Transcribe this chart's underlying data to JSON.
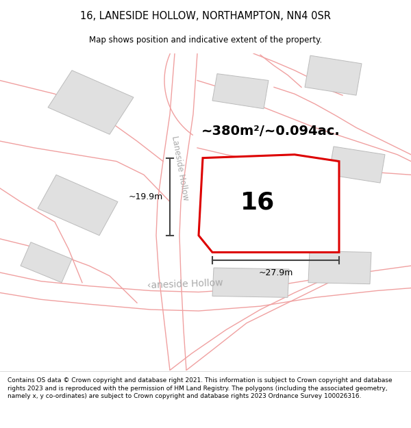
{
  "title": "16, LANESIDE HOLLOW, NORTHAMPTON, NN4 0SR",
  "subtitle": "Map shows position and indicative extent of the property.",
  "area_label": "~380m²/~0.094ac.",
  "plot_number": "16",
  "dim_width": "~27.9m",
  "dim_height": "~19.9m",
  "road_label_diag": "Laneside Hollow",
  "road_label_bottom": "‹aneside Hollow",
  "background_color": "#ffffff",
  "plot_outline_color": "#dd0000",
  "dim_line_color": "#444444",
  "footer_text": "Contains OS data © Crown copyright and database right 2021. This information is subject to Crown copyright and database rights 2023 and is reproduced with the permission of HM Land Registry. The polygons (including the associated geometry, namely x, y co-ordinates) are subject to Crown copyright and database rights 2023 Ordnance Survey 100026316.",
  "road_line_color": "#f0a0a0",
  "building_face": "#e0e0e0",
  "building_edge": "#bbbbbb",
  "map_bg": "#ffffff"
}
